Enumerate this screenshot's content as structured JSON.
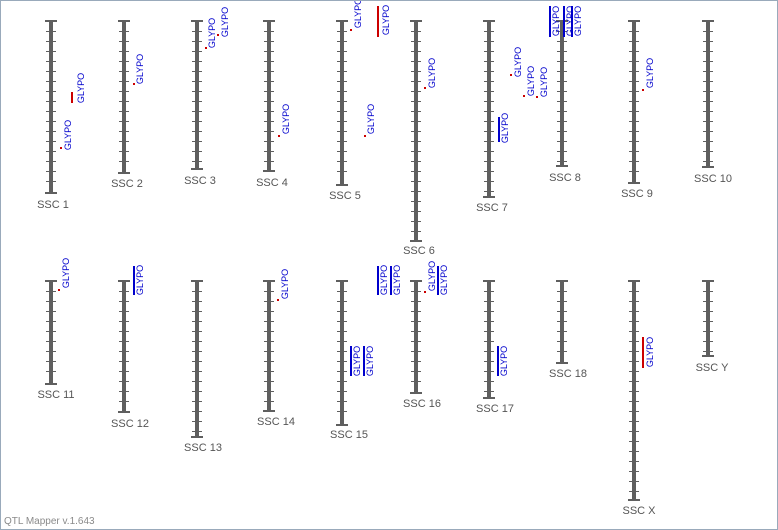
{
  "footer": "QTL Mapper v.1.643",
  "qtl_label": "GLYPO",
  "colors": {
    "chromosome": "#5f5f5f",
    "chrom_label": "#555555",
    "qtl_text": "#0000cc",
    "qtl_blue": "#0000cc",
    "qtl_red": "#cc0000"
  },
  "chromosomes": [
    {
      "name": "SSC 1"
    },
    {
      "name": "SSC 2"
    },
    {
      "name": "SSC 3"
    },
    {
      "name": "SSC 4"
    },
    {
      "name": "SSC 5"
    },
    {
      "name": "SSC 6"
    },
    {
      "name": "SSC 7"
    },
    {
      "name": "SSC 8"
    },
    {
      "name": "SSC 9"
    },
    {
      "name": "SSC 10"
    },
    {
      "name": "SSC 11"
    },
    {
      "name": "SSC 12"
    },
    {
      "name": "SSC 13"
    },
    {
      "name": "SSC 14"
    },
    {
      "name": "SSC 15"
    },
    {
      "name": "SSC 16"
    },
    {
      "name": "SSC 17"
    },
    {
      "name": "SSC 18"
    },
    {
      "name": "SSC X"
    },
    {
      "name": "SSC Y"
    }
  ]
}
